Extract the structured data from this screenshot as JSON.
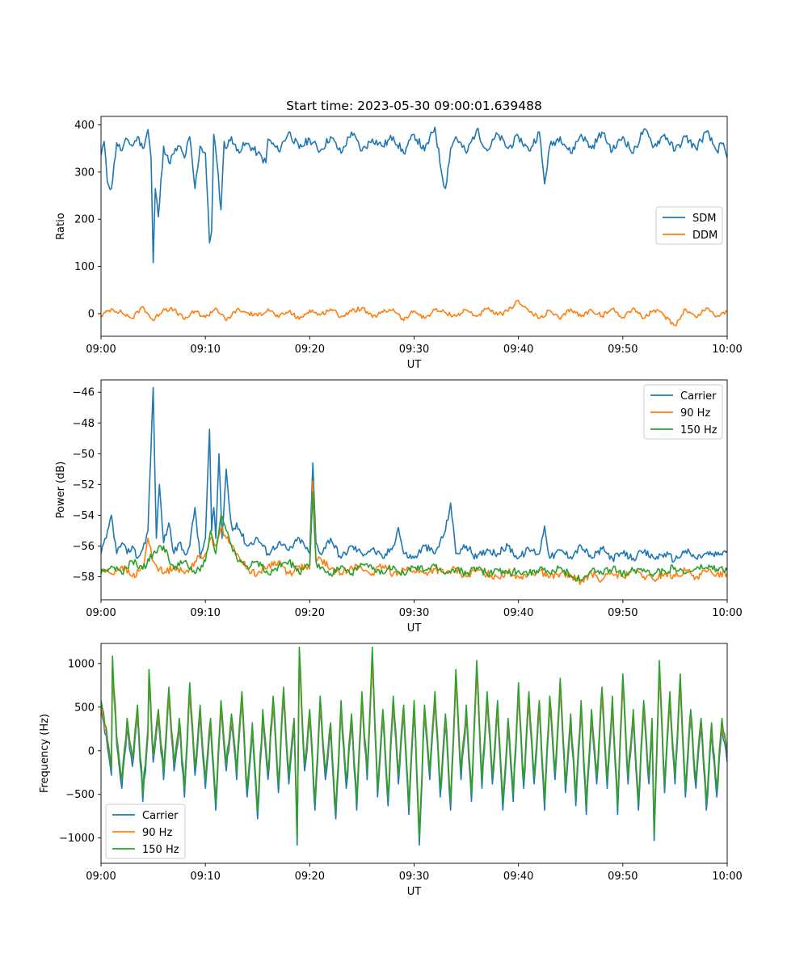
{
  "figure": {
    "title": "Start time: 2023-05-30 09:00:01.639488"
  },
  "colors": {
    "blue": "#1f77b4",
    "orange": "#ff7f0e",
    "green": "#2ca02c"
  },
  "chart_data": [
    {
      "type": "line",
      "title": "Start time: 2023-05-30 09:00:01.639488",
      "xlabel": "UT",
      "ylabel": "Ratio",
      "x_range": [
        "09:00",
        "10:00"
      ],
      "xticks": [
        "09:00",
        "09:10",
        "09:20",
        "09:30",
        "09:40",
        "09:50",
        "10:00"
      ],
      "ylim": [
        -48,
        418
      ],
      "yticks": [
        0,
        100,
        200,
        300,
        400
      ],
      "legend": "center-right",
      "series": [
        {
          "name": "SDM",
          "color": "#1f77b4",
          "t": [
            0,
            0.3,
            0.6,
            1,
            1.5,
            2,
            2.5,
            3,
            3.5,
            4,
            4.5,
            4.8,
            5,
            5.2,
            5.5,
            6,
            6.5,
            7,
            7.5,
            8,
            8.5,
            9,
            9.5,
            10,
            10.4,
            10.6,
            10.8,
            11,
            11.5,
            11.8,
            12,
            12.5,
            13,
            14,
            15,
            15.8,
            16,
            17,
            18,
            19,
            20,
            21,
            22,
            23,
            24,
            25,
            26,
            27,
            28,
            29,
            30,
            31,
            32,
            32.7,
            33,
            33.5,
            34,
            35,
            36,
            37,
            38,
            39,
            40,
            41,
            42,
            42.5,
            43,
            44,
            45,
            46,
            47,
            48,
            49,
            50,
            51,
            52,
            53,
            54,
            55,
            56,
            57,
            58,
            59,
            59.5,
            60
          ],
          "values": [
            335,
            365,
            280,
            265,
            362,
            345,
            370,
            355,
            375,
            350,
            390,
            330,
            108,
            265,
            205,
            355,
            320,
            340,
            355,
            330,
            375,
            265,
            355,
            340,
            150,
            175,
            380,
            345,
            220,
            365,
            350,
            375,
            345,
            360,
            340,
            320,
            370,
            345,
            385,
            350,
            370,
            345,
            375,
            340,
            385,
            345,
            370,
            355,
            375,
            340,
            380,
            345,
            395,
            290,
            265,
            350,
            375,
            340,
            390,
            345,
            380,
            350,
            375,
            345,
            385,
            275,
            355,
            375,
            340,
            380,
            350,
            385,
            345,
            375,
            340,
            390,
            355,
            380,
            345,
            375,
            350,
            385,
            345,
            360,
            330
          ]
        },
        {
          "name": "DDM",
          "color": "#ff7f0e",
          "t": [
            0,
            1,
            2,
            3,
            4,
            5,
            6,
            7,
            8,
            9,
            10,
            11,
            12,
            13,
            14,
            15,
            16,
            17,
            18,
            19,
            20,
            21,
            22,
            23,
            24,
            25,
            26,
            27,
            28,
            29,
            30,
            31,
            32,
            33,
            34,
            35,
            36,
            37,
            38,
            39,
            40,
            41,
            42,
            43,
            44,
            45,
            46,
            47,
            48,
            49,
            50,
            51,
            52,
            53,
            54,
            55,
            56,
            57,
            58,
            59,
            60
          ],
          "values": [
            -5,
            10,
            2,
            -10,
            15,
            -15,
            10,
            8,
            -12,
            5,
            -8,
            12,
            -15,
            8,
            2,
            -5,
            10,
            -8,
            5,
            -12,
            8,
            -3,
            10,
            -6,
            5,
            12,
            -8,
            3,
            10,
            -15,
            6,
            -10,
            8,
            2,
            -5,
            8,
            -6,
            10,
            -3,
            5,
            28,
            5,
            -10,
            6,
            -12,
            10,
            -6,
            8,
            -5,
            10,
            -8,
            12,
            -10,
            8,
            -5,
            -25,
            10,
            -8,
            12,
            -5,
            5
          ]
        }
      ]
    },
    {
      "type": "line",
      "title": "",
      "xlabel": "UT",
      "ylabel": "Power (dB)",
      "x_range": [
        "09:00",
        "10:00"
      ],
      "xticks": [
        "09:00",
        "09:10",
        "09:20",
        "09:30",
        "09:40",
        "09:50",
        "10:00"
      ],
      "ylim": [
        -59.5,
        -45.2
      ],
      "yticks": [
        -58,
        -56,
        -54,
        -52,
        -50,
        -48,
        -46
      ],
      "yticklabels": [
        "−58",
        "−56",
        "−54",
        "−52",
        "−50",
        "−48",
        "−46"
      ],
      "legend": "top-right",
      "series": [
        {
          "name": "Carrier",
          "color": "#1f77b4",
          "t": [
            0,
            0.5,
            1,
            1.5,
            2,
            2.5,
            3,
            3.5,
            4,
            4.5,
            5,
            5.3,
            5.6,
            6,
            6.5,
            7,
            7.5,
            8,
            8.5,
            9,
            9.5,
            10,
            10.4,
            10.6,
            10.8,
            11,
            11.3,
            11.6,
            12,
            12.3,
            12.6,
            13,
            14,
            15,
            16,
            17,
            18,
            19,
            20,
            20.3,
            20.6,
            21,
            22,
            23,
            24,
            25,
            26,
            27,
            28,
            28.5,
            29,
            30,
            31,
            32,
            33,
            33.5,
            34,
            35,
            36,
            37,
            38,
            39,
            40,
            41,
            42,
            42.5,
            43,
            44,
            45,
            46,
            47,
            48,
            49,
            50,
            51,
            52,
            53,
            54,
            55,
            56,
            57,
            58,
            59,
            60
          ],
          "values": [
            -56.5,
            -55.5,
            -54.0,
            -56.5,
            -55.8,
            -56.5,
            -56.0,
            -56.8,
            -56.2,
            -55.0,
            -45.7,
            -55.5,
            -52.0,
            -55.8,
            -54.5,
            -56.5,
            -55.8,
            -56.5,
            -56.0,
            -53.5,
            -56.8,
            -55.5,
            -48.4,
            -55.0,
            -53.5,
            -55.5,
            -50.0,
            -55.5,
            -51.0,
            -53.5,
            -55.0,
            -54.5,
            -56.0,
            -55.5,
            -56.5,
            -55.8,
            -56.3,
            -55.5,
            -56.5,
            -50.6,
            -55.8,
            -56.5,
            -55.5,
            -56.8,
            -56.0,
            -56.5,
            -56.2,
            -56.8,
            -56.0,
            -54.8,
            -56.5,
            -56.8,
            -56.0,
            -56.5,
            -55.0,
            -53.2,
            -56.5,
            -56.0,
            -56.8,
            -56.2,
            -56.5,
            -56.0,
            -56.8,
            -56.2,
            -56.5,
            -54.7,
            -56.8,
            -56.3,
            -56.7,
            -56.0,
            -56.8,
            -56.2,
            -56.8,
            -56.5,
            -56.8,
            -56.4,
            -56.8,
            -56.5,
            -56.9,
            -56.3,
            -56.8,
            -56.5,
            -56.6,
            -56.3
          ]
        },
        {
          "name": "90 Hz",
          "color": "#ff7f0e",
          "t": [
            0,
            1,
            2,
            3,
            4,
            4.5,
            5,
            6,
            7,
            8,
            9,
            10,
            10.5,
            11,
            11.5,
            12,
            13,
            14,
            15,
            16,
            17,
            18,
            19,
            20,
            20.3,
            20.6,
            21,
            22,
            23,
            24,
            25,
            26,
            27,
            28,
            29,
            30,
            31,
            32,
            33,
            34,
            35,
            36,
            37,
            38,
            39,
            40,
            41,
            42,
            43,
            44,
            45,
            46,
            47,
            48,
            49,
            50,
            51,
            52,
            53,
            54,
            55,
            56,
            57,
            58,
            59,
            60
          ],
          "values": [
            -57.5,
            -57.8,
            -57.3,
            -58.0,
            -57.5,
            -55.5,
            -57.0,
            -57.8,
            -57.3,
            -57.8,
            -57.0,
            -56.5,
            -55.5,
            -56.0,
            -54.8,
            -55.5,
            -56.5,
            -57.5,
            -57.8,
            -57.3,
            -57.0,
            -57.8,
            -57.3,
            -57.5,
            -51.8,
            -57.0,
            -56.8,
            -57.5,
            -57.8,
            -57.3,
            -57.5,
            -57.8,
            -57.3,
            -57.8,
            -57.5,
            -57.6,
            -57.8,
            -57.5,
            -57.8,
            -57.5,
            -58.0,
            -57.6,
            -57.8,
            -58.0,
            -57.7,
            -58.0,
            -57.8,
            -57.6,
            -58.0,
            -57.8,
            -58.0,
            -58.3,
            -57.8,
            -58.2,
            -57.8,
            -58.0,
            -57.6,
            -58.0,
            -58.2,
            -57.8,
            -58.0,
            -57.6,
            -58.0,
            -57.7,
            -57.8,
            -57.8
          ]
        },
        {
          "name": "150 Hz",
          "color": "#2ca02c",
          "t": [
            0,
            1,
            2,
            3,
            4,
            5,
            6,
            7,
            8,
            9,
            10,
            10.5,
            11,
            11.5,
            12,
            13,
            14,
            15,
            16,
            17,
            18,
            19,
            20,
            20.3,
            20.6,
            21,
            22,
            23,
            24,
            25,
            26,
            27,
            28,
            29,
            30,
            31,
            32,
            33,
            34,
            35,
            36,
            37,
            38,
            39,
            40,
            41,
            42,
            43,
            44,
            45,
            46,
            47,
            48,
            49,
            50,
            51,
            52,
            53,
            54,
            55,
            56,
            57,
            58,
            59,
            60
          ],
          "values": [
            -57.8,
            -57.3,
            -57.8,
            -57.0,
            -57.5,
            -56.5,
            -56.0,
            -57.5,
            -57.0,
            -57.8,
            -57.0,
            -55.0,
            -56.5,
            -54.0,
            -55.0,
            -56.8,
            -57.3,
            -57.0,
            -57.8,
            -57.3,
            -57.0,
            -57.8,
            -57.2,
            -52.5,
            -57.0,
            -57.5,
            -57.8,
            -57.3,
            -57.8,
            -57.2,
            -57.5,
            -57.8,
            -57.3,
            -57.8,
            -57.4,
            -57.6,
            -57.3,
            -57.8,
            -57.5,
            -57.8,
            -57.4,
            -57.8,
            -57.5,
            -57.8,
            -57.6,
            -57.8,
            -57.5,
            -57.8,
            -57.4,
            -57.9,
            -58.2,
            -57.6,
            -57.8,
            -57.5,
            -57.8,
            -57.6,
            -57.5,
            -57.8,
            -57.6,
            -57.4,
            -57.8,
            -57.5,
            -57.4,
            -57.5,
            -57.6
          ]
        }
      ]
    },
    {
      "type": "line",
      "title": "",
      "xlabel": "UT",
      "ylabel": "Frequency (Hz)",
      "x_range": [
        "09:00",
        "10:00"
      ],
      "xticks": [
        "09:00",
        "09:10",
        "09:20",
        "09:30",
        "09:40",
        "09:50",
        "10:00"
      ],
      "ylim": [
        -1290,
        1230
      ],
      "yticks": [
        -1000,
        -500,
        0,
        500,
        1000
      ],
      "yticklabels": [
        "−1000",
        "−500",
        "0",
        "500",
        "1000"
      ],
      "legend": "bottom-left",
      "series": [
        {
          "name": "Carrier",
          "color": "#1f77b4"
        },
        {
          "name": "90 Hz",
          "color": "#ff7f0e"
        },
        {
          "name": "150 Hz",
          "color": "#2ca02c"
        }
      ],
      "base_signal": {
        "t": [
          0,
          0.5,
          1,
          1.1,
          1.5,
          2,
          2.5,
          3,
          3.5,
          4,
          4.5,
          4.6,
          5,
          5.5,
          6,
          6.5,
          7,
          7.5,
          8,
          8.5,
          9,
          9.5,
          10,
          10.5,
          11,
          11.5,
          12,
          12.5,
          13,
          13.5,
          14,
          14.5,
          15,
          15.5,
          16,
          16.5,
          17,
          17.5,
          18,
          18.5,
          18.8,
          19,
          19.5,
          20,
          20.5,
          21,
          21.5,
          22,
          22.5,
          23,
          23.5,
          24,
          24.5,
          25,
          25.5,
          26,
          26.5,
          27,
          27.5,
          28,
          28.5,
          29,
          29.5,
          30,
          30.5,
          31,
          31.5,
          32,
          32.5,
          33,
          33.5,
          34,
          34.5,
          35,
          35.5,
          36,
          36.5,
          37,
          37.5,
          38,
          38.5,
          39,
          39.5,
          40,
          40.5,
          41,
          41.5,
          42,
          42.5,
          43,
          43.5,
          44,
          44.5,
          45,
          45.5,
          46,
          46.5,
          47,
          47.5,
          48,
          48.5,
          49,
          49.5,
          50,
          50.5,
          51,
          51.5,
          52,
          52.5,
          52.8,
          53,
          53.5,
          54,
          54.5,
          55,
          55.5,
          56,
          56.5,
          57,
          57.5,
          58,
          58.5,
          59,
          59.5,
          60
        ],
        "values": [
          500,
          200,
          -250,
          1000,
          100,
          -400,
          300,
          -150,
          450,
          -550,
          200,
          850,
          -100,
          400,
          -300,
          650,
          -200,
          300,
          -500,
          700,
          -250,
          450,
          -400,
          300,
          -650,
          500,
          -200,
          350,
          -300,
          600,
          -500,
          250,
          -750,
          400,
          -300,
          550,
          -450,
          650,
          -350,
          300,
          -1050,
          1100,
          -200,
          400,
          -650,
          550,
          -300,
          250,
          -750,
          500,
          -400,
          350,
          -650,
          600,
          -300,
          1100,
          -500,
          400,
          -600,
          550,
          -350,
          450,
          -700,
          500,
          -1050,
          450,
          -300,
          600,
          -500,
          350,
          -650,
          850,
          -300,
          450,
          -550,
          950,
          -400,
          600,
          -350,
          500,
          -650,
          300,
          -550,
          700,
          -400,
          600,
          -350,
          500,
          -650,
          550,
          -300,
          750,
          -450,
          350,
          -600,
          500,
          -700,
          400,
          -350,
          650,
          -400,
          550,
          -700,
          800,
          -350,
          400,
          -650,
          500,
          -350,
          300,
          -1000,
          950,
          -450,
          600,
          -350,
          800,
          -500,
          400,
          -400,
          300,
          -650,
          250,
          -500,
          300,
          -100
        ]
      }
    }
  ]
}
